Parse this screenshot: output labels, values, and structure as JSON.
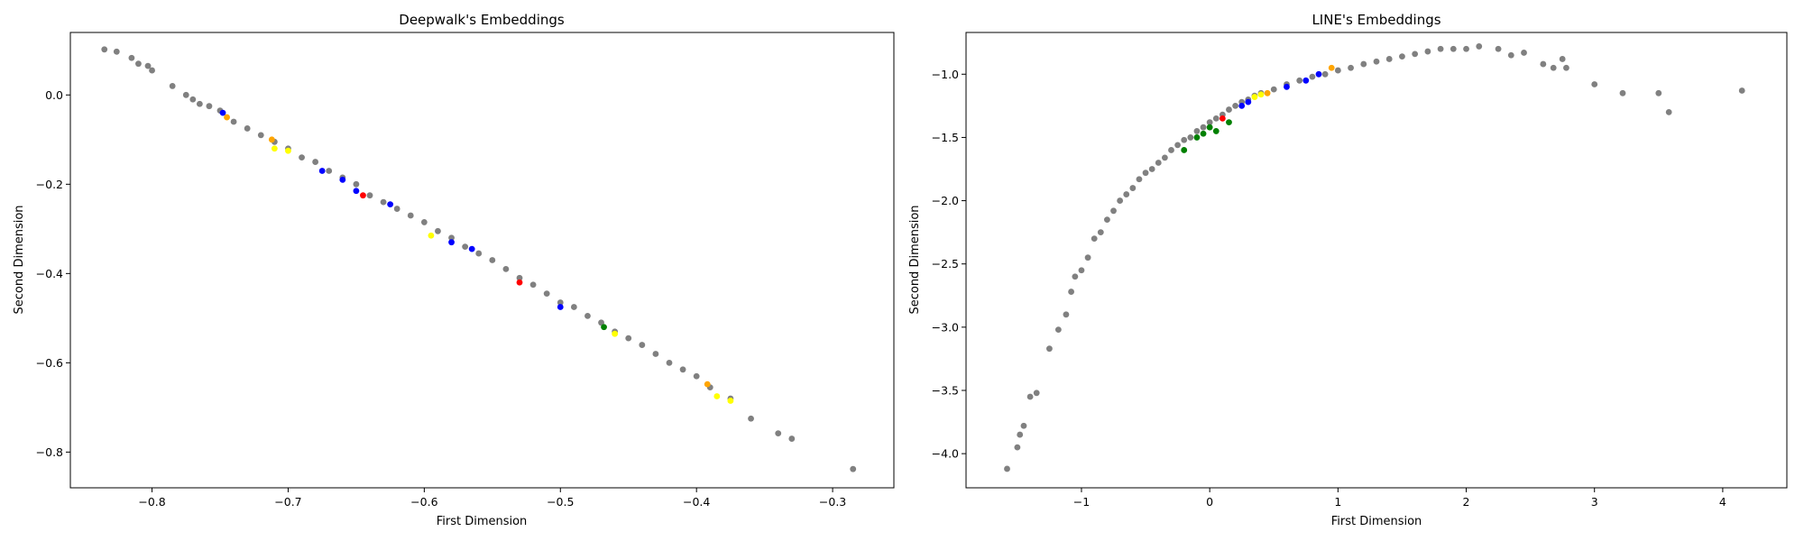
{
  "chart_data": [
    {
      "type": "scatter",
      "title": "Deepwalk's Embeddings",
      "xlabel": "First Dimension",
      "ylabel": "Second Dimension",
      "xlim": [
        -0.86,
        -0.255
      ],
      "ylim": [
        -0.88,
        0.14
      ],
      "xticks": [
        -0.8,
        -0.7,
        -0.6,
        -0.5,
        -0.4,
        -0.3
      ],
      "xtick_labels": [
        "−0.8",
        "−0.7",
        "−0.6",
        "−0.5",
        "−0.4",
        "−0.3"
      ],
      "yticks": [
        0.0,
        -0.2,
        -0.4,
        -0.6,
        -0.8
      ],
      "ytick_labels": [
        "0.0",
        "−0.2",
        "−0.4",
        "−0.6",
        "−0.8"
      ],
      "grid": false,
      "legend": null,
      "colors": {
        "gray": "#808080",
        "blue": "#0000ff",
        "red": "#ff0000",
        "yellow": "#ffff00",
        "orange": "#ffa500",
        "green": "#008000"
      },
      "series": [
        {
          "color": "gray",
          "points": [
            [
              -0.835,
              0.102
            ],
            [
              -0.826,
              0.097
            ],
            [
              -0.815,
              0.083
            ],
            [
              -0.81,
              0.07
            ],
            [
              -0.803,
              0.065
            ],
            [
              -0.8,
              0.055
            ],
            [
              -0.785,
              0.02
            ],
            [
              -0.775,
              0.0
            ],
            [
              -0.77,
              -0.01
            ],
            [
              -0.765,
              -0.02
            ],
            [
              -0.758,
              -0.025
            ],
            [
              -0.75,
              -0.035
            ],
            [
              -0.74,
              -0.06
            ],
            [
              -0.73,
              -0.075
            ],
            [
              -0.72,
              -0.09
            ],
            [
              -0.71,
              -0.105
            ],
            [
              -0.7,
              -0.12
            ],
            [
              -0.69,
              -0.14
            ],
            [
              -0.68,
              -0.15
            ],
            [
              -0.67,
              -0.17
            ],
            [
              -0.66,
              -0.185
            ],
            [
              -0.65,
              -0.2
            ],
            [
              -0.64,
              -0.225
            ],
            [
              -0.63,
              -0.24
            ],
            [
              -0.62,
              -0.255
            ],
            [
              -0.61,
              -0.27
            ],
            [
              -0.6,
              -0.285
            ],
            [
              -0.59,
              -0.305
            ],
            [
              -0.58,
              -0.32
            ],
            [
              -0.57,
              -0.34
            ],
            [
              -0.56,
              -0.355
            ],
            [
              -0.55,
              -0.37
            ],
            [
              -0.54,
              -0.39
            ],
            [
              -0.53,
              -0.41
            ],
            [
              -0.52,
              -0.425
            ],
            [
              -0.51,
              -0.445
            ],
            [
              -0.5,
              -0.465
            ],
            [
              -0.49,
              -0.475
            ],
            [
              -0.48,
              -0.495
            ],
            [
              -0.47,
              -0.51
            ],
            [
              -0.46,
              -0.53
            ],
            [
              -0.45,
              -0.545
            ],
            [
              -0.44,
              -0.56
            ],
            [
              -0.43,
              -0.58
            ],
            [
              -0.42,
              -0.6
            ],
            [
              -0.41,
              -0.615
            ],
            [
              -0.4,
              -0.63
            ],
            [
              -0.39,
              -0.655
            ],
            [
              -0.375,
              -0.68
            ],
            [
              -0.36,
              -0.725
            ],
            [
              -0.34,
              -0.758
            ],
            [
              -0.33,
              -0.77
            ],
            [
              -0.285,
              -0.838
            ]
          ]
        },
        {
          "color": "blue",
          "points": [
            [
              -0.748,
              -0.04
            ],
            [
              -0.675,
              -0.17
            ],
            [
              -0.66,
              -0.19
            ],
            [
              -0.65,
              -0.215
            ],
            [
              -0.625,
              -0.245
            ],
            [
              -0.58,
              -0.33
            ],
            [
              -0.565,
              -0.345
            ],
            [
              -0.5,
              -0.475
            ]
          ]
        },
        {
          "color": "red",
          "points": [
            [
              -0.645,
              -0.225
            ],
            [
              -0.53,
              -0.42
            ]
          ]
        },
        {
          "color": "yellow",
          "points": [
            [
              -0.71,
              -0.12
            ],
            [
              -0.7,
              -0.125
            ],
            [
              -0.595,
              -0.315
            ],
            [
              -0.46,
              -0.535
            ],
            [
              -0.385,
              -0.675
            ],
            [
              -0.375,
              -0.685
            ]
          ]
        },
        {
          "color": "orange",
          "points": [
            [
              -0.745,
              -0.05
            ],
            [
              -0.712,
              -0.1
            ],
            [
              -0.392,
              -0.648
            ]
          ]
        },
        {
          "color": "green",
          "points": [
            [
              -0.468,
              -0.52
            ]
          ]
        }
      ]
    },
    {
      "type": "scatter",
      "title": "LINE's Embeddings",
      "xlabel": "First Dimension",
      "ylabel": "Second Dimension",
      "xlim": [
        -1.9,
        4.5
      ],
      "ylim": [
        -4.27,
        -0.67
      ],
      "xticks": [
        -1,
        0,
        1,
        2,
        3,
        4
      ],
      "xtick_labels": [
        "−1",
        "0",
        "1",
        "2",
        "3",
        "4"
      ],
      "yticks": [
        -1.0,
        -1.5,
        -2.0,
        -2.5,
        -3.0,
        -3.5,
        -4.0
      ],
      "ytick_labels": [
        "−1.0",
        "−1.5",
        "−2.0",
        "−2.5",
        "−3.0",
        "−3.5",
        "−4.0"
      ],
      "grid": false,
      "legend": null,
      "colors": {
        "gray": "#808080",
        "blue": "#0000ff",
        "red": "#ff0000",
        "yellow": "#ffff00",
        "orange": "#ffa500",
        "green": "#008000"
      },
      "series": [
        {
          "color": "gray",
          "points": [
            [
              -1.58,
              -4.12
            ],
            [
              -1.5,
              -3.95
            ],
            [
              -1.48,
              -3.85
            ],
            [
              -1.45,
              -3.78
            ],
            [
              -1.4,
              -3.55
            ],
            [
              -1.35,
              -3.52
            ],
            [
              -1.25,
              -3.17
            ],
            [
              -1.18,
              -3.02
            ],
            [
              -1.12,
              -2.9
            ],
            [
              -1.08,
              -2.72
            ],
            [
              -1.05,
              -2.6
            ],
            [
              -1.0,
              -2.55
            ],
            [
              -0.95,
              -2.45
            ],
            [
              -0.9,
              -2.3
            ],
            [
              -0.85,
              -2.25
            ],
            [
              -0.8,
              -2.15
            ],
            [
              -0.75,
              -2.08
            ],
            [
              -0.7,
              -2.0
            ],
            [
              -0.65,
              -1.95
            ],
            [
              -0.6,
              -1.9
            ],
            [
              -0.55,
              -1.83
            ],
            [
              -0.5,
              -1.78
            ],
            [
              -0.45,
              -1.75
            ],
            [
              -0.4,
              -1.7
            ],
            [
              -0.35,
              -1.66
            ],
            [
              -0.3,
              -1.6
            ],
            [
              -0.25,
              -1.56
            ],
            [
              -0.2,
              -1.52
            ],
            [
              -0.15,
              -1.5
            ],
            [
              -0.1,
              -1.45
            ],
            [
              -0.05,
              -1.42
            ],
            [
              0.0,
              -1.38
            ],
            [
              0.05,
              -1.35
            ],
            [
              0.1,
              -1.32
            ],
            [
              0.15,
              -1.28
            ],
            [
              0.2,
              -1.25
            ],
            [
              0.25,
              -1.22
            ],
            [
              0.3,
              -1.2
            ],
            [
              0.35,
              -1.17
            ],
            [
              0.4,
              -1.15
            ],
            [
              0.5,
              -1.12
            ],
            [
              0.6,
              -1.08
            ],
            [
              0.7,
              -1.05
            ],
            [
              0.8,
              -1.02
            ],
            [
              0.9,
              -1.0
            ],
            [
              1.0,
              -0.97
            ],
            [
              1.1,
              -0.95
            ],
            [
              1.2,
              -0.92
            ],
            [
              1.3,
              -0.9
            ],
            [
              1.4,
              -0.88
            ],
            [
              1.5,
              -0.86
            ],
            [
              1.6,
              -0.84
            ],
            [
              1.7,
              -0.82
            ],
            [
              1.8,
              -0.8
            ],
            [
              1.9,
              -0.8
            ],
            [
              2.0,
              -0.8
            ],
            [
              2.1,
              -0.78
            ],
            [
              2.25,
              -0.8
            ],
            [
              2.35,
              -0.85
            ],
            [
              2.45,
              -0.83
            ],
            [
              2.6,
              -0.92
            ],
            [
              2.68,
              -0.95
            ],
            [
              2.75,
              -0.88
            ],
            [
              2.78,
              -0.95
            ],
            [
              3.0,
              -1.08
            ],
            [
              3.22,
              -1.15
            ],
            [
              3.5,
              -1.15
            ],
            [
              3.58,
              -1.3
            ],
            [
              4.15,
              -1.13
            ]
          ]
        },
        {
          "color": "green",
          "points": [
            [
              -0.2,
              -1.6
            ],
            [
              -0.1,
              -1.5
            ],
            [
              -0.05,
              -1.47
            ],
            [
              0.0,
              -1.42
            ],
            [
              0.05,
              -1.45
            ],
            [
              0.15,
              -1.38
            ]
          ]
        },
        {
          "color": "red",
          "points": [
            [
              0.1,
              -1.35
            ]
          ]
        },
        {
          "color": "blue",
          "points": [
            [
              0.25,
              -1.25
            ],
            [
              0.3,
              -1.22
            ],
            [
              0.6,
              -1.1
            ],
            [
              0.75,
              -1.05
            ],
            [
              0.85,
              -1.0
            ]
          ]
        },
        {
          "color": "yellow",
          "points": [
            [
              0.35,
              -1.18
            ],
            [
              0.4,
              -1.16
            ]
          ]
        },
        {
          "color": "orange",
          "points": [
            [
              0.45,
              -1.15
            ],
            [
              0.95,
              -0.95
            ]
          ]
        }
      ]
    }
  ]
}
